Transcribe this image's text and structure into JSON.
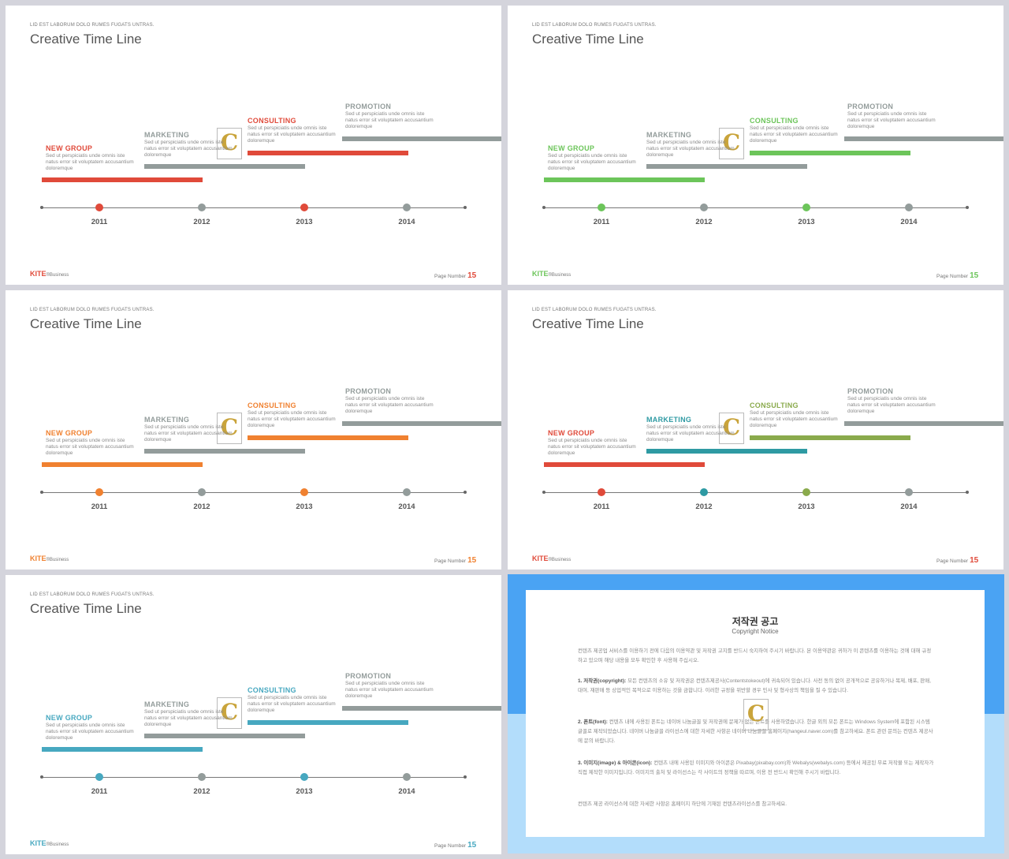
{
  "slide_common": {
    "kicker": "LID EST LABORUM DOLO RUMES FUGATS UNTRAS.",
    "title": "Creative Time Line",
    "brand": "KITE",
    "brand_sub": "®Business",
    "page_label": "Page Number",
    "page_number": "15",
    "watermark": "C",
    "body_text": "Sed ut perspiciatis unde omnis iste natus error sit voluptatem accusantium doloremque"
  },
  "events": [
    {
      "label": "NEW GROUP",
      "year": "2011"
    },
    {
      "label": "MARKETING",
      "year": "2012"
    },
    {
      "label": "CONSULTING",
      "year": "2013"
    },
    {
      "label": "PROMOTION",
      "year": "2014"
    }
  ],
  "slides": [
    {
      "name": "red",
      "colors": [
        "#e04a3a",
        "#939c9b",
        "#e04a3a",
        "#939c9b"
      ],
      "brand_color": "#e04a3a"
    },
    {
      "name": "green",
      "colors": [
        "#6cc55a",
        "#939c9b",
        "#6cc55a",
        "#939c9b"
      ],
      "brand_color": "#6cc55a"
    },
    {
      "name": "orange",
      "colors": [
        "#f08130",
        "#939c9b",
        "#f08130",
        "#939c9b"
      ],
      "brand_color": "#f08130"
    },
    {
      "name": "multi",
      "colors": [
        "#e04a3a",
        "#2e9aa3",
        "#8aaa4c",
        "#939c9b"
      ],
      "brand_color": "#e04a3a"
    },
    {
      "name": "teal",
      "colors": [
        "#47a8c0",
        "#939c9b",
        "#47a8c0",
        "#939c9b"
      ],
      "brand_color": "#47a8c0"
    }
  ],
  "notice": {
    "title": "저작권 공고",
    "subtitle": "Copyright Notice",
    "intro": "컨텐츠 제공업 서비스를 이용하기 전에 다음의 이용약관 및 저작권 고지를 반드시 숙지하여 주시기 바랍니다. 본 이용약관은 귀하가 이 콘텐츠를 이용하는 것에 대해 규정하고 있으며 해당 내용을 모두 확인한 후 사용해 주십시오.",
    "items": [
      {
        "head": "1. 저작권(copyright):",
        "body": "모든 컨텐츠의 소유 및 저작권은 컨텐츠제공사(Contentstokeout)에 귀속되어 있습니다. 사전 동의 없이 공개적으로 공유하거나 복제, 배포, 판매, 대여, 재판매 등 상업적인 목적으로 이용하는 것을 금합니다. 이러한 규정을 위반할 경우 민사 및 형사상의 책임을 질 수 있습니다."
      },
      {
        "head": "2. 폰트(font):",
        "body": "컨텐츠 내에 사용된 폰트는 네이버 나눔글꼴 및 저작권에 문제가 없는 폰트를 사용하였습니다. 한글 외의 모든 폰트는 Windows System에 포함된 시스템 글꼴로 제작되었습니다. 네이버 나눔글꼴 라이선스에 대한 자세한 사항은 네이버 나눔글꼴 홈페이지(hangeul.naver.com)를 참고하세요. 폰트 관련 문의는 컨텐츠 제공사에 문의 바랍니다."
      },
      {
        "head": "3. 이미지(image) & 아이콘(icon):",
        "body": "컨텐츠 내에 사용된 이미지와 아이콘은 Pixabay(pixabay.com)와 Webalys(webalys.com) 등에서 제공된 무료 저작물 또는 제작자가 직접 제작한 이미지입니다. 이미지의 출처 및 라이선스는 각 사이트의 정책을 따르며, 이용 전 반드시 확인해 주시기 바랍니다."
      }
    ],
    "outro": "컨텐츠 제공 라이선스에 대한 자세한 사항은 홈페이지 하단에 기재된 컨텐츠라이선스를 참고하세요."
  }
}
